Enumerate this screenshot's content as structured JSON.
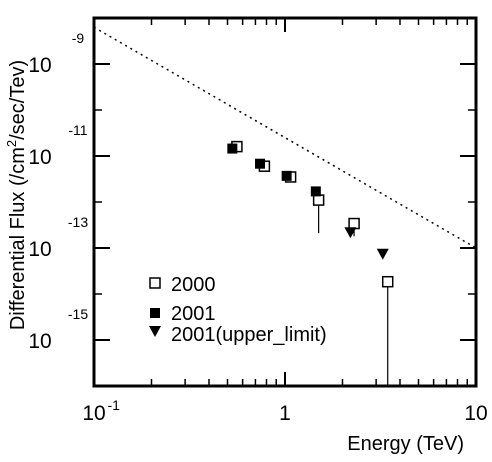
{
  "chart_data": {
    "type": "scatter",
    "xlabel": "Energy (TeV)",
    "ylabel_parts": [
      "Differential Flux (/cm",
      "2",
      "/sec/Tev)"
    ],
    "xscale": "log",
    "yscale": "log",
    "xlim": [
      0.1,
      10
    ],
    "ylim": [
      1e-16,
      1e-08
    ],
    "xticks": [
      {
        "value": 0.1,
        "base": "10",
        "exp": "-1"
      },
      {
        "value": 1,
        "base": "1",
        "exp": ""
      },
      {
        "value": 10,
        "base": "10",
        "exp": ""
      }
    ],
    "yticks": [
      {
        "value": 1e-09,
        "base": "10",
        "exp": "-9"
      },
      {
        "value": 1e-11,
        "base": "10",
        "exp": "-11"
      },
      {
        "value": 1e-13,
        "base": "10",
        "exp": "-13"
      },
      {
        "value": 1e-15,
        "base": "10",
        "exp": "-15"
      }
    ],
    "reference_line": {
      "style": "dotted",
      "points": [
        [
          0.1,
          6.3e-09
        ],
        [
          10,
          1e-13
        ]
      ]
    },
    "series": [
      {
        "name": "2000",
        "marker": "open-square",
        "points": [
          {
            "x": 0.56,
            "y": 1.6e-11
          },
          {
            "x": 0.78,
            "y": 6e-12
          },
          {
            "x": 1.07,
            "y": 3.5e-12
          },
          {
            "x": 1.5,
            "y": 1.1e-12,
            "ylow": 2.1e-13
          },
          {
            "x": 2.3,
            "y": 3.4e-13,
            "ylow": 1.8e-13
          },
          {
            "x": 3.45,
            "y": 1.85e-14,
            "ylow": 1e-16
          }
        ]
      },
      {
        "name": "2001",
        "marker": "filled-square",
        "points": [
          {
            "x": 0.53,
            "y": 1.45e-11
          },
          {
            "x": 0.74,
            "y": 6.8e-12
          },
          {
            "x": 1.02,
            "y": 3.7e-12
          },
          {
            "x": 1.45,
            "y": 1.7e-12
          }
        ]
      },
      {
        "name": "2001(upper_limit)",
        "marker": "filled-triangle-down",
        "points": [
          {
            "x": 2.2,
            "y": 2.2e-13
          },
          {
            "x": 3.25,
            "y": 7.5e-14
          }
        ]
      }
    ],
    "legend_position": "lower-left"
  }
}
